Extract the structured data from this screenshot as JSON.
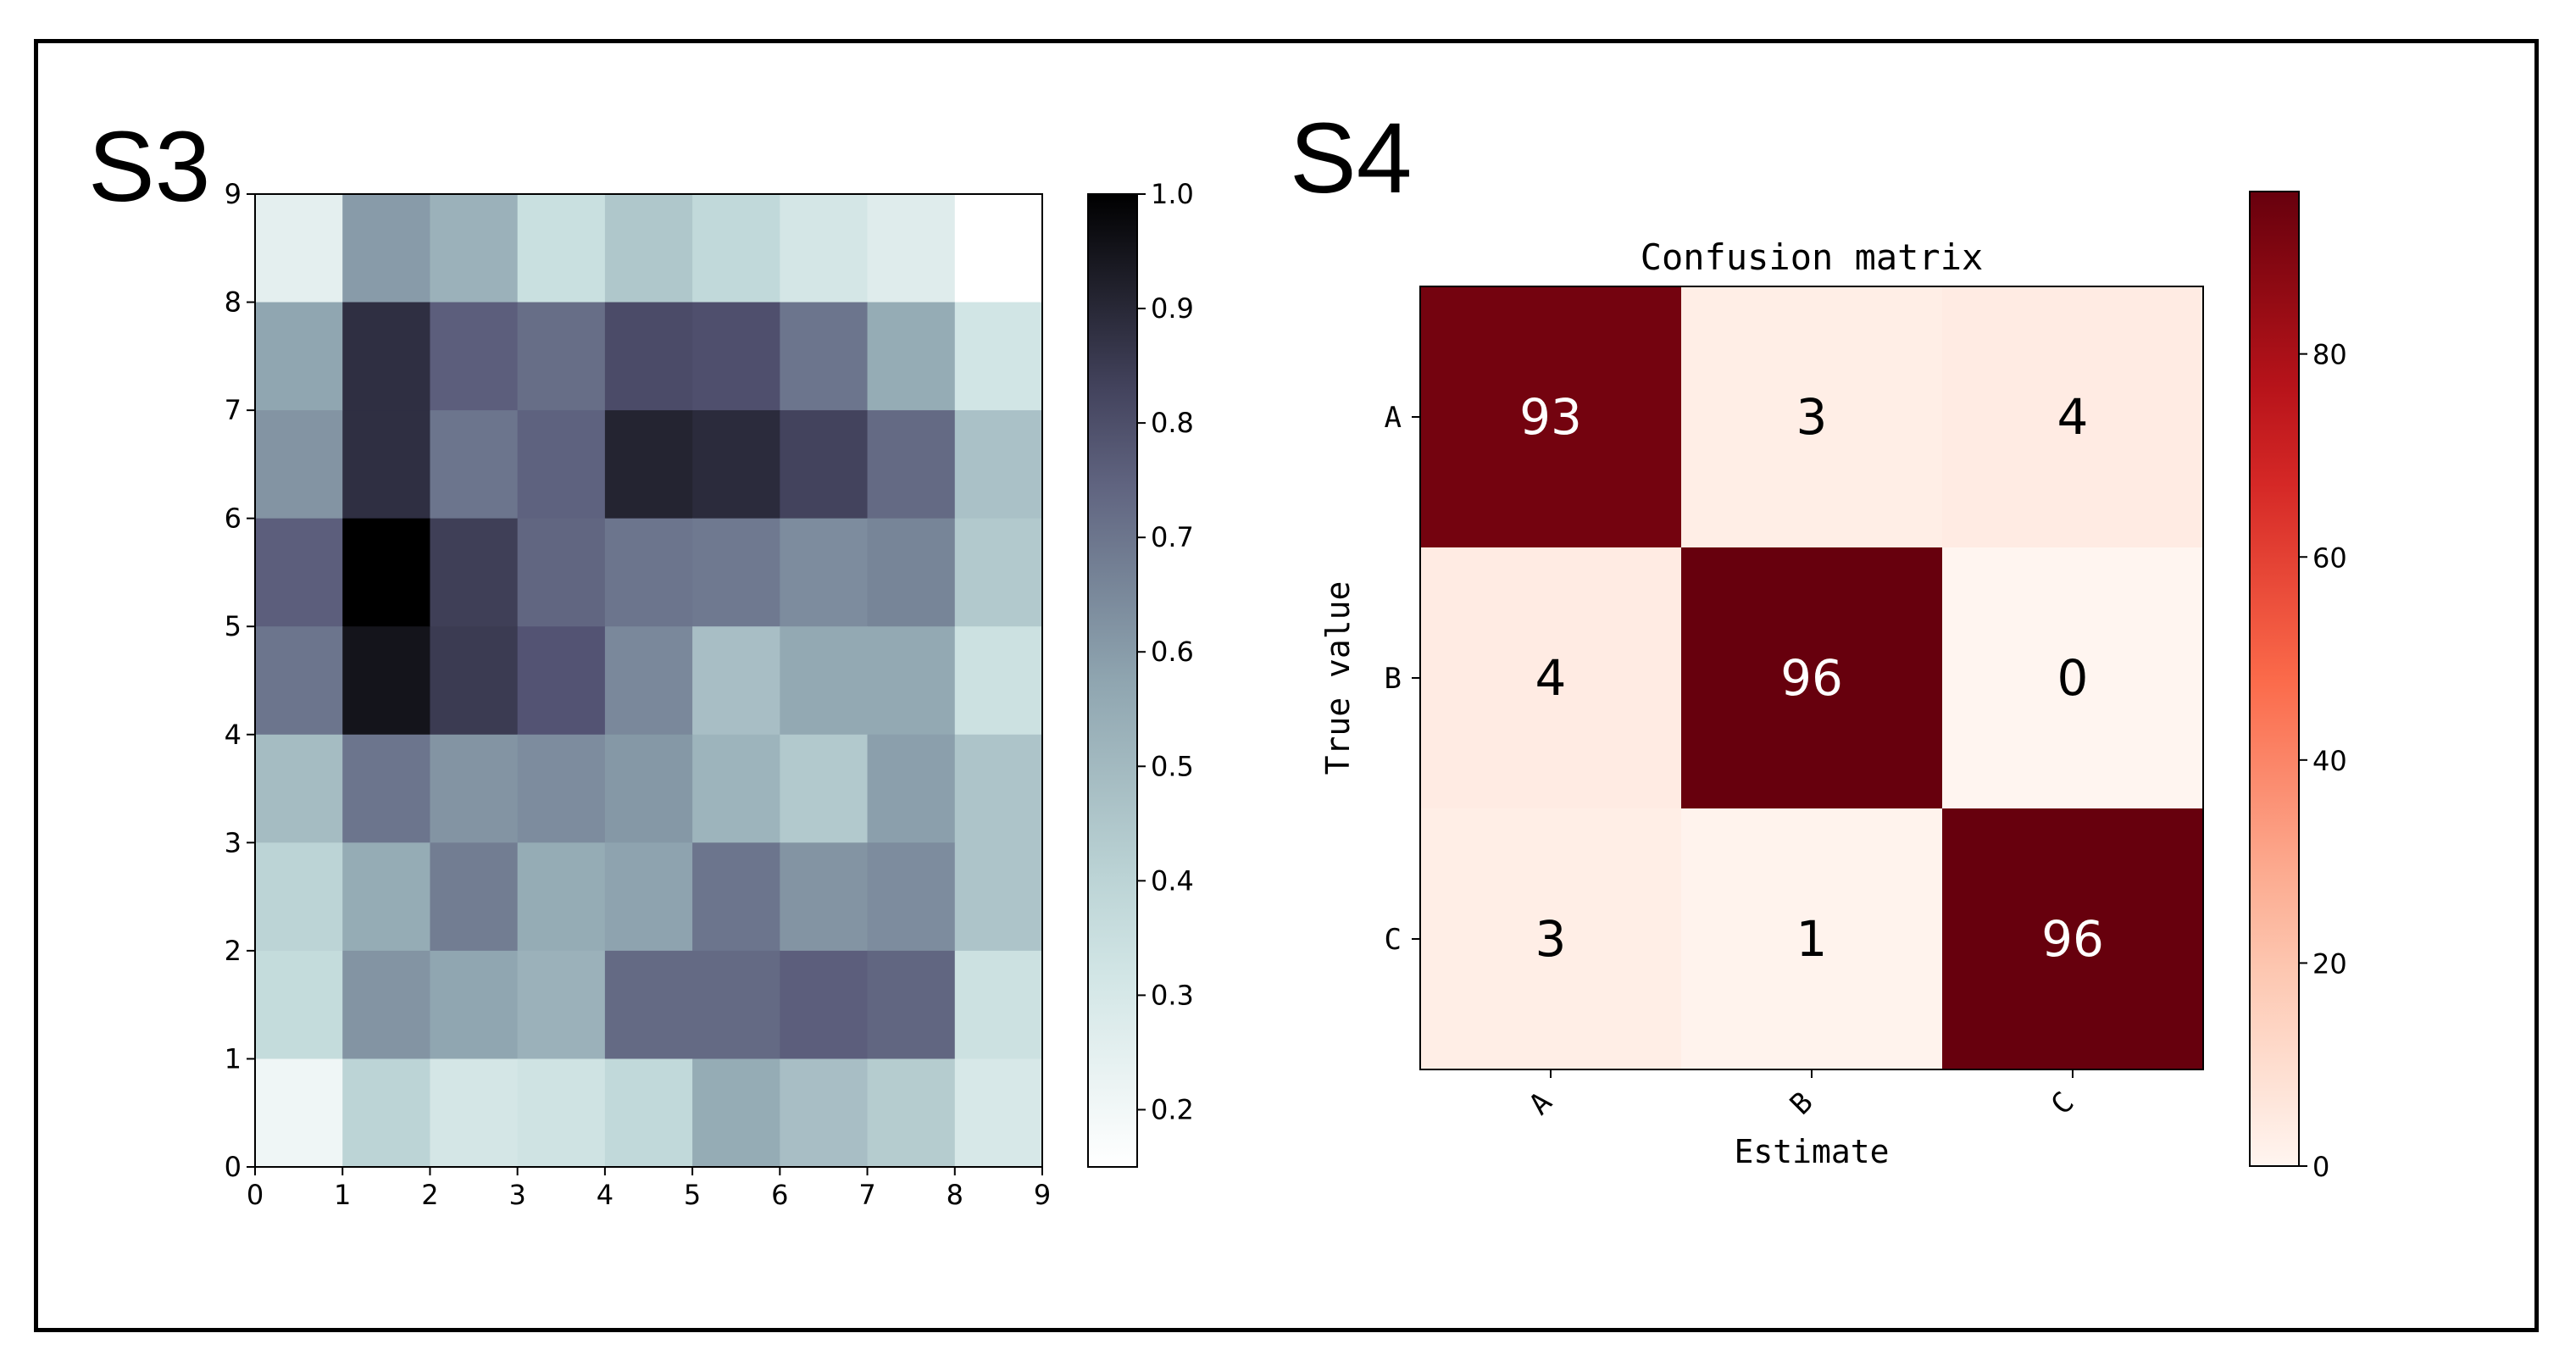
{
  "panels": {
    "s3_label": "S3",
    "s4_label": "S4"
  },
  "chart_data": [
    {
      "type": "heatmap",
      "id": "S3",
      "title": "",
      "colormap": "bone_r",
      "x_ticks": [
        "0",
        "1",
        "2",
        "3",
        "4",
        "5",
        "6",
        "7",
        "8",
        "9"
      ],
      "y_ticks": [
        "0",
        "1",
        "2",
        "3",
        "4",
        "5",
        "6",
        "7",
        "8",
        "9"
      ],
      "xlim": [
        0,
        9
      ],
      "ylim": [
        0,
        9
      ],
      "colorbar": {
        "min": 0.15,
        "max": 1.0,
        "ticks": [
          "0.2",
          "0.3",
          "0.4",
          "0.5",
          "0.6",
          "0.7",
          "0.8",
          "0.9",
          "1.0"
        ]
      },
      "rows_top_to_bottom": [
        [
          0.25,
          0.6,
          0.53,
          0.35,
          0.45,
          0.38,
          0.31,
          0.27,
          0.15
        ],
        [
          0.57,
          0.88,
          0.76,
          0.72,
          0.81,
          0.8,
          0.7,
          0.55,
          0.32
        ],
        [
          0.62,
          0.88,
          0.7,
          0.75,
          0.91,
          0.89,
          0.83,
          0.73,
          0.47
        ],
        [
          0.76,
          1.0,
          0.84,
          0.74,
          0.7,
          0.69,
          0.64,
          0.66,
          0.44
        ],
        [
          0.7,
          0.95,
          0.85,
          0.79,
          0.65,
          0.48,
          0.56,
          0.56,
          0.34
        ],
        [
          0.49,
          0.7,
          0.62,
          0.64,
          0.61,
          0.52,
          0.44,
          0.59,
          0.46
        ],
        [
          0.4,
          0.55,
          0.68,
          0.55,
          0.58,
          0.7,
          0.62,
          0.64,
          0.46
        ],
        [
          0.37,
          0.62,
          0.57,
          0.53,
          0.73,
          0.73,
          0.76,
          0.74,
          0.34
        ],
        [
          0.21,
          0.4,
          0.31,
          0.33,
          0.38,
          0.55,
          0.48,
          0.43,
          0.3
        ]
      ]
    },
    {
      "type": "heatmap",
      "id": "S4",
      "title": "Confusion matrix",
      "xlabel": "Estimate",
      "ylabel": "True value",
      "x_categories": [
        "A",
        "B",
        "C"
      ],
      "y_categories": [
        "A",
        "B",
        "C"
      ],
      "colormap": "Reds",
      "colorbar": {
        "min": 0,
        "max": 96,
        "ticks": [
          "0",
          "20",
          "40",
          "60",
          "80"
        ]
      },
      "values": [
        [
          93,
          3,
          4
        ],
        [
          4,
          96,
          0
        ],
        [
          3,
          1,
          96
        ]
      ],
      "labels": [
        [
          "93",
          "3",
          "4"
        ],
        [
          "4",
          "96",
          "0"
        ],
        [
          "3",
          "1",
          "96"
        ]
      ]
    }
  ]
}
